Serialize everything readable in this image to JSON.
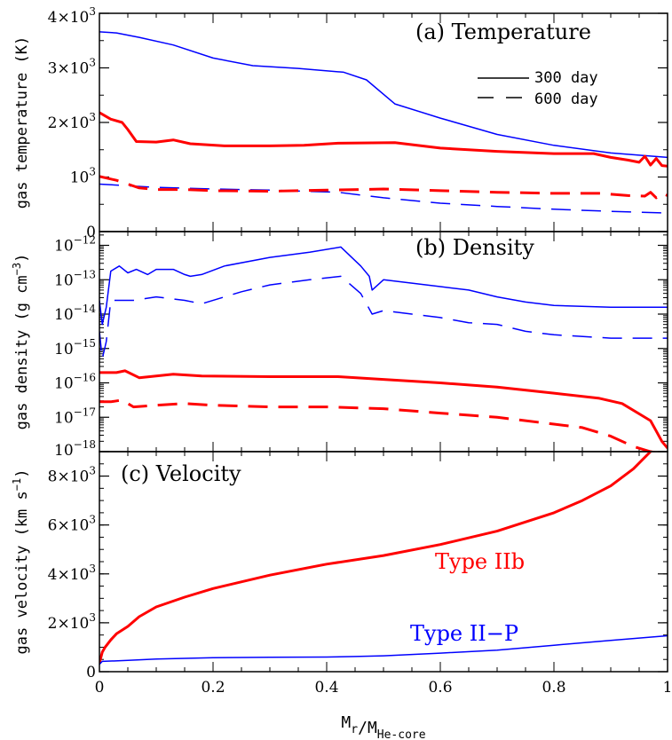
{
  "chart_data": [
    {
      "type": "line",
      "title": "(a) Temperature",
      "ylabel": "gas temperature (K)",
      "xlim": [
        0,
        1
      ],
      "ylim": [
        0,
        4000
      ],
      "yticks": [
        {
          "v": 0,
          "m": "0",
          "e": ""
        },
        {
          "v": 1000,
          "m": "10",
          "e": "3"
        },
        {
          "v": 2000,
          "m": "2×10",
          "e": "3"
        },
        {
          "v": 3000,
          "m": "3×10",
          "e": "3"
        },
        {
          "v": 4000,
          "m": "4×10",
          "e": "3"
        }
      ],
      "legend": [
        {
          "label": "300 day",
          "style": "solid"
        },
        {
          "label": "600 day",
          "style": "dashed"
        }
      ],
      "series": [
        {
          "color": "#0000ff",
          "style": "solid",
          "points": [
            [
              0,
              3660
            ],
            [
              0.03,
              3640
            ],
            [
              0.07,
              3560
            ],
            [
              0.13,
              3420
            ],
            [
              0.2,
              3180
            ],
            [
              0.27,
              3040
            ],
            [
              0.35,
              2990
            ],
            [
              0.43,
              2920
            ],
            [
              0.47,
              2780
            ],
            [
              0.52,
              2340
            ],
            [
              0.6,
              2080
            ],
            [
              0.7,
              1780
            ],
            [
              0.8,
              1580
            ],
            [
              0.9,
              1440
            ],
            [
              1.0,
              1360
            ]
          ]
        },
        {
          "color": "#ff0000",
          "style": "solid",
          "width": 3,
          "points": [
            [
              0,
              2180
            ],
            [
              0.02,
              2060
            ],
            [
              0.04,
              2000
            ],
            [
              0.05,
              1870
            ],
            [
              0.065,
              1650
            ],
            [
              0.1,
              1640
            ],
            [
              0.13,
              1680
            ],
            [
              0.16,
              1610
            ],
            [
              0.22,
              1570
            ],
            [
              0.3,
              1570
            ],
            [
              0.36,
              1580
            ],
            [
              0.42,
              1620
            ],
            [
              0.52,
              1630
            ],
            [
              0.6,
              1530
            ],
            [
              0.7,
              1470
            ],
            [
              0.8,
              1430
            ],
            [
              0.87,
              1430
            ],
            [
              0.9,
              1360
            ],
            [
              0.93,
              1310
            ],
            [
              0.95,
              1270
            ],
            [
              0.96,
              1380
            ],
            [
              0.97,
              1220
            ],
            [
              0.98,
              1340
            ],
            [
              0.99,
              1210
            ],
            [
              1.0,
              1200
            ]
          ]
        },
        {
          "color": "#0000ff",
          "style": "dashed",
          "points": [
            [
              0,
              870
            ],
            [
              0.1,
              810
            ],
            [
              0.2,
              780
            ],
            [
              0.3,
              760
            ],
            [
              0.42,
              720
            ],
            [
              0.5,
              620
            ],
            [
              0.6,
              520
            ],
            [
              0.7,
              460
            ],
            [
              0.8,
              410
            ],
            [
              0.9,
              370
            ],
            [
              1.0,
              340
            ]
          ]
        },
        {
          "color": "#ff0000",
          "style": "dashed",
          "width": 3,
          "points": [
            [
              0,
              1010
            ],
            [
              0.03,
              940
            ],
            [
              0.07,
              800
            ],
            [
              0.1,
              770
            ],
            [
              0.15,
              770
            ],
            [
              0.2,
              750
            ],
            [
              0.3,
              740
            ],
            [
              0.4,
              760
            ],
            [
              0.5,
              780
            ],
            [
              0.6,
              750
            ],
            [
              0.7,
              720
            ],
            [
              0.8,
              700
            ],
            [
              0.88,
              700
            ],
            [
              0.93,
              660
            ],
            [
              0.96,
              650
            ],
            [
              0.97,
              720
            ],
            [
              0.98,
              620
            ],
            [
              0.99,
              700
            ],
            [
              1.0,
              660
            ]
          ]
        }
      ]
    },
    {
      "type": "line",
      "title": "(b) Density",
      "ylabel": "gas density (g cm^-3)",
      "yscale": "log",
      "xlim": [
        0,
        1
      ],
      "ylim": [
        1e-18,
        4e-12
      ],
      "yticks": [
        {
          "v": -12,
          "m": "10",
          "e": "−12"
        },
        {
          "v": -13,
          "m": "10",
          "e": "−13"
        },
        {
          "v": -14,
          "m": "10",
          "e": "−14"
        },
        {
          "v": -15,
          "m": "10",
          "e": "−15"
        },
        {
          "v": -16,
          "m": "10",
          "e": "−16"
        },
        {
          "v": -17,
          "m": "10",
          "e": "−17"
        },
        {
          "v": -18,
          "m": "10",
          "e": "−18"
        }
      ],
      "series": [
        {
          "color": "#0000ff",
          "style": "solid",
          "points": [
            [
              0,
              -13.6
            ],
            [
              0.005,
              -14.3
            ],
            [
              0.012,
              -13.8
            ],
            [
              0.02,
              -12.75
            ],
            [
              0.035,
              -12.6
            ],
            [
              0.05,
              -12.8
            ],
            [
              0.065,
              -12.7
            ],
            [
              0.085,
              -12.85
            ],
            [
              0.1,
              -12.7
            ],
            [
              0.13,
              -12.7
            ],
            [
              0.15,
              -12.85
            ],
            [
              0.16,
              -12.9
            ],
            [
              0.18,
              -12.85
            ],
            [
              0.22,
              -12.6
            ],
            [
              0.3,
              -12.35
            ],
            [
              0.37,
              -12.2
            ],
            [
              0.425,
              -12.05
            ],
            [
              0.46,
              -12.6
            ],
            [
              0.475,
              -12.9
            ],
            [
              0.48,
              -13.3
            ],
            [
              0.5,
              -13.0
            ],
            [
              0.55,
              -13.1
            ],
            [
              0.6,
              -13.2
            ],
            [
              0.65,
              -13.3
            ],
            [
              0.7,
              -13.5
            ],
            [
              0.75,
              -13.65
            ],
            [
              0.8,
              -13.75
            ],
            [
              0.9,
              -13.8
            ],
            [
              1.0,
              -13.8
            ]
          ]
        },
        {
          "color": "#0000ff",
          "style": "dashed",
          "points": [
            [
              0,
              -14.5
            ],
            [
              0.005,
              -15.3
            ],
            [
              0.012,
              -14.8
            ],
            [
              0.02,
              -13.6
            ],
            [
              0.06,
              -13.6
            ],
            [
              0.1,
              -13.5
            ],
            [
              0.15,
              -13.6
            ],
            [
              0.18,
              -13.7
            ],
            [
              0.25,
              -13.35
            ],
            [
              0.3,
              -13.15
            ],
            [
              0.37,
              -13.0
            ],
            [
              0.425,
              -12.9
            ],
            [
              0.46,
              -13.4
            ],
            [
              0.48,
              -14.0
            ],
            [
              0.5,
              -13.9
            ],
            [
              0.55,
              -14.0
            ],
            [
              0.6,
              -14.1
            ],
            [
              0.65,
              -14.25
            ],
            [
              0.7,
              -14.3
            ],
            [
              0.75,
              -14.5
            ],
            [
              0.8,
              -14.6
            ],
            [
              0.9,
              -14.7
            ],
            [
              1.0,
              -14.7
            ]
          ]
        },
        {
          "color": "#ff0000",
          "style": "solid",
          "width": 3,
          "points": [
            [
              0,
              -15.7
            ],
            [
              0.03,
              -15.7
            ],
            [
              0.045,
              -15.65
            ],
            [
              0.07,
              -15.85
            ],
            [
              0.1,
              -15.8
            ],
            [
              0.13,
              -15.75
            ],
            [
              0.18,
              -15.8
            ],
            [
              0.3,
              -15.82
            ],
            [
              0.42,
              -15.82
            ],
            [
              0.5,
              -15.9
            ],
            [
              0.6,
              -16.0
            ],
            [
              0.7,
              -16.12
            ],
            [
              0.8,
              -16.3
            ],
            [
              0.88,
              -16.45
            ],
            [
              0.92,
              -16.6
            ],
            [
              0.95,
              -16.9
            ],
            [
              0.97,
              -17.1
            ],
            [
              0.98,
              -17.4
            ],
            [
              0.99,
              -17.7
            ],
            [
              1.0,
              -17.9
            ]
          ]
        },
        {
          "color": "#ff0000",
          "style": "dashed",
          "width": 3,
          "points": [
            [
              0,
              -16.55
            ],
            [
              0.02,
              -16.55
            ],
            [
              0.04,
              -16.5
            ],
            [
              0.06,
              -16.7
            ],
            [
              0.1,
              -16.65
            ],
            [
              0.15,
              -16.6
            ],
            [
              0.2,
              -16.65
            ],
            [
              0.3,
              -16.7
            ],
            [
              0.4,
              -16.7
            ],
            [
              0.5,
              -16.75
            ],
            [
              0.6,
              -16.88
            ],
            [
              0.7,
              -17.0
            ],
            [
              0.8,
              -17.2
            ],
            [
              0.85,
              -17.3
            ],
            [
              0.9,
              -17.55
            ],
            [
              0.94,
              -17.85
            ],
            [
              0.97,
              -18.0
            ],
            [
              1.0,
              -18.1
            ]
          ]
        }
      ]
    },
    {
      "type": "line",
      "title": "(c) Velocity",
      "ylabel": "gas velocity (km s^-1)",
      "xlim": [
        0,
        1
      ],
      "ylim": [
        0,
        9000
      ],
      "yticks": [
        {
          "v": 0,
          "m": "0",
          "e": ""
        },
        {
          "v": 2000,
          "m": "2×10",
          "e": "3"
        },
        {
          "v": 4000,
          "m": "4×10",
          "e": "3"
        },
        {
          "v": 6000,
          "m": "6×10",
          "e": "3"
        },
        {
          "v": 8000,
          "m": "8×10",
          "e": "3"
        }
      ],
      "xticks": [
        "0",
        "0.2",
        "0.4",
        "0.6",
        "0.8",
        "1"
      ],
      "xlabel": "M_r/M_He-core",
      "annotations": [
        {
          "text": "Type IIb",
          "color": "#ff0000"
        },
        {
          "text": "Type II−P",
          "color": "#0000ff"
        }
      ],
      "series": [
        {
          "name": "Type IIb",
          "color": "#ff0000",
          "style": "solid",
          "width": 3,
          "points": [
            [
              0,
              350
            ],
            [
              0.005,
              800
            ],
            [
              0.01,
              1000
            ],
            [
              0.02,
              1300
            ],
            [
              0.03,
              1550
            ],
            [
              0.05,
              1850
            ],
            [
              0.07,
              2250
            ],
            [
              0.1,
              2650
            ],
            [
              0.15,
              3050
            ],
            [
              0.2,
              3400
            ],
            [
              0.3,
              3950
            ],
            [
              0.4,
              4400
            ],
            [
              0.5,
              4750
            ],
            [
              0.6,
              5200
            ],
            [
              0.7,
              5750
            ],
            [
              0.8,
              6500
            ],
            [
              0.85,
              7000
            ],
            [
              0.9,
              7600
            ],
            [
              0.94,
              8300
            ],
            [
              0.97,
              9000
            ]
          ]
        },
        {
          "name": "Type II−P",
          "color": "#0000ff",
          "style": "solid",
          "points": [
            [
              0,
              300
            ],
            [
              0.005,
              420
            ],
            [
              0.05,
              460
            ],
            [
              0.1,
              520
            ],
            [
              0.2,
              570
            ],
            [
              0.3,
              590
            ],
            [
              0.4,
              600
            ],
            [
              0.45,
              620
            ],
            [
              0.5,
              650
            ],
            [
              0.6,
              760
            ],
            [
              0.7,
              880
            ],
            [
              0.8,
              1080
            ],
            [
              0.9,
              1280
            ],
            [
              1.0,
              1470
            ]
          ]
        }
      ]
    }
  ]
}
